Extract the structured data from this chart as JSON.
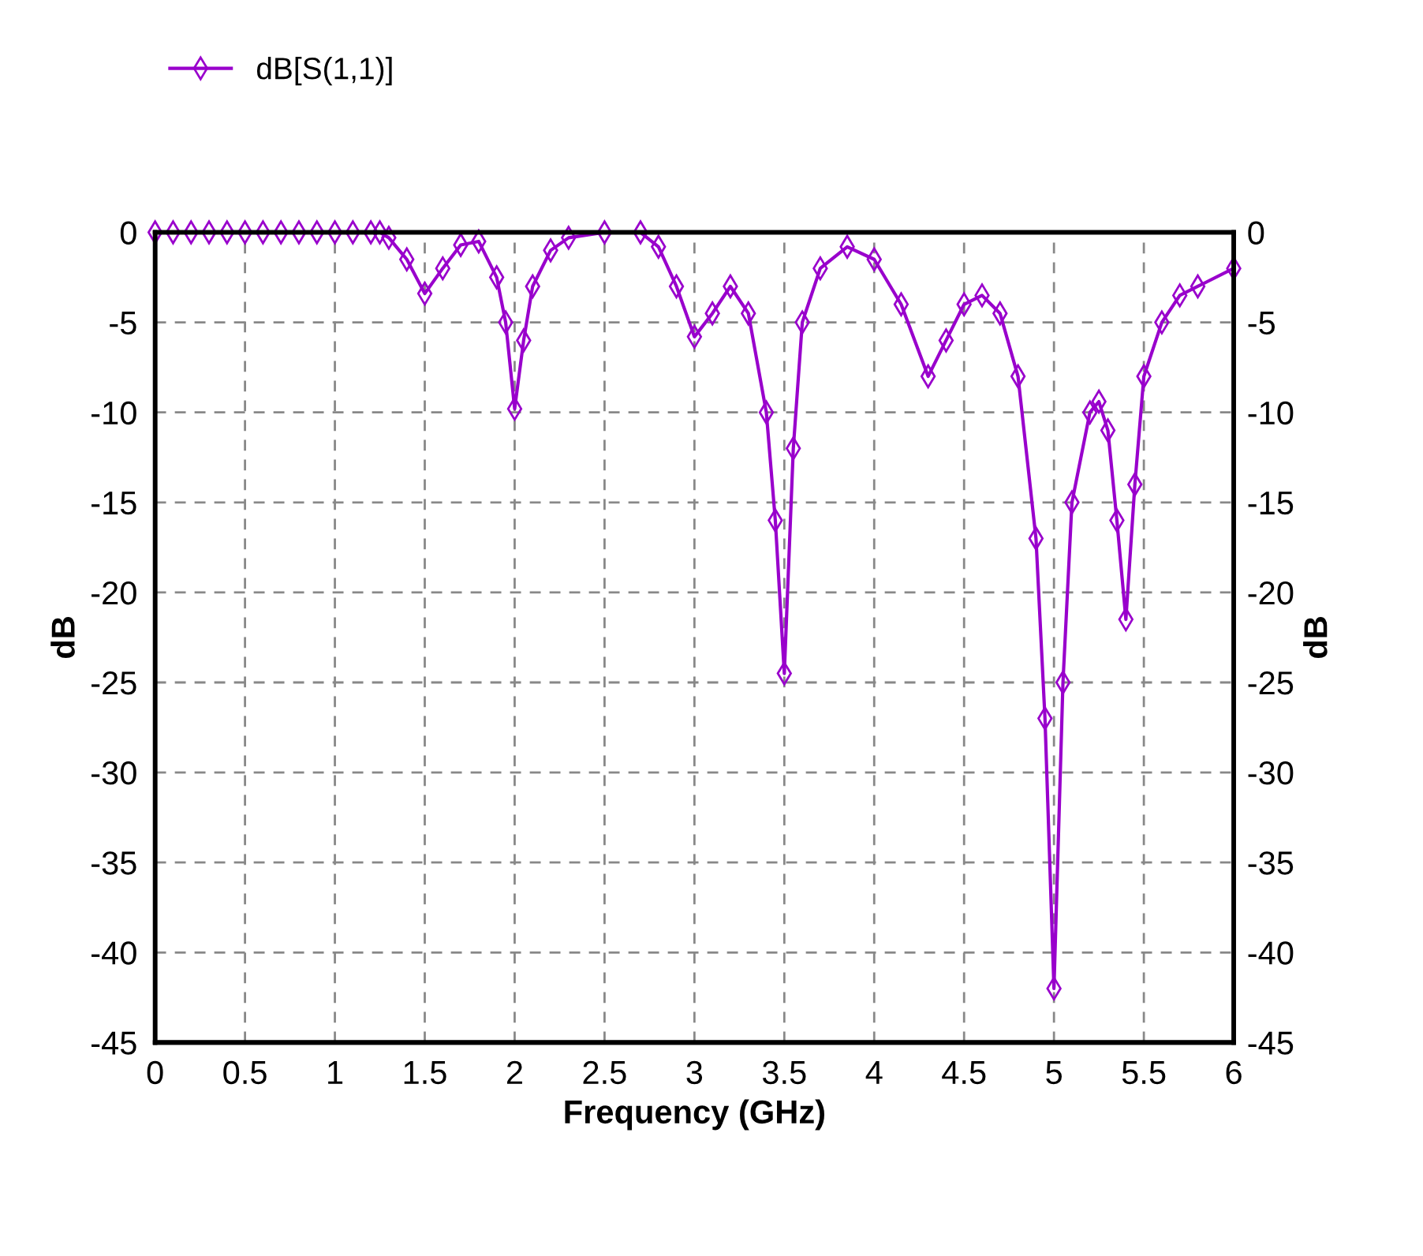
{
  "chart_data": {
    "type": "line",
    "xlabel": "Frequency (GHz)",
    "ylabel": "dB",
    "y2label": "dB",
    "xlim": [
      0,
      6
    ],
    "xticks": [
      0,
      0.5,
      1,
      1.5,
      2,
      2.5,
      3,
      3.5,
      4,
      4.5,
      5,
      5.5,
      6
    ],
    "ylim": [
      -45,
      0
    ],
    "yticks": [
      -45,
      -40,
      -35,
      -30,
      -25,
      -20,
      -15,
      -10,
      -5,
      0
    ],
    "y2lim": [
      -45,
      0
    ],
    "y2ticks": [
      -45,
      -40,
      -35,
      -30,
      -25,
      -20,
      -15,
      -10,
      -5,
      0
    ],
    "grid": true,
    "legend": "top left",
    "marker": "diamond",
    "line_style": "solid",
    "series": [
      {
        "name": "dB[S(1,1)]",
        "color": "#9900cc",
        "x": [
          0,
          0.1,
          0.2,
          0.3,
          0.4,
          0.5,
          0.6,
          0.7,
          0.8,
          0.9,
          1.0,
          1.1,
          1.2,
          1.25,
          1.3,
          1.4,
          1.5,
          1.6,
          1.7,
          1.8,
          1.9,
          1.95,
          2.0,
          2.05,
          2.1,
          2.2,
          2.3,
          2.5,
          2.7,
          2.8,
          2.9,
          3.0,
          3.1,
          3.2,
          3.3,
          3.4,
          3.45,
          3.5,
          3.55,
          3.6,
          3.7,
          3.85,
          4.0,
          4.15,
          4.3,
          4.4,
          4.5,
          4.6,
          4.7,
          4.8,
          4.9,
          4.95,
          5.0,
          5.05,
          5.1,
          5.2,
          5.25,
          5.3,
          5.35,
          5.4,
          5.45,
          5.5,
          5.6,
          5.7,
          5.8,
          6.0
        ],
        "values": [
          0,
          0,
          0,
          0,
          0,
          0,
          0,
          0,
          0,
          0,
          0,
          0,
          0,
          0,
          -0.3,
          -1.5,
          -3.4,
          -2,
          -0.7,
          -0.5,
          -2.5,
          -5,
          -9.8,
          -6,
          -3,
          -1,
          -0.3,
          0,
          0,
          -0.8,
          -3,
          -5.8,
          -4.5,
          -3,
          -4.5,
          -10,
          -16,
          -24.5,
          -12,
          -5,
          -2,
          -0.8,
          -1.5,
          -4,
          -8,
          -6,
          -4,
          -3.5,
          -4.5,
          -8,
          -17,
          -27,
          -42,
          -25,
          -15,
          -10,
          -9.4,
          -11,
          -16,
          -21.5,
          -14,
          -8,
          -5,
          -3.5,
          -3,
          -2
        ]
      }
    ]
  }
}
